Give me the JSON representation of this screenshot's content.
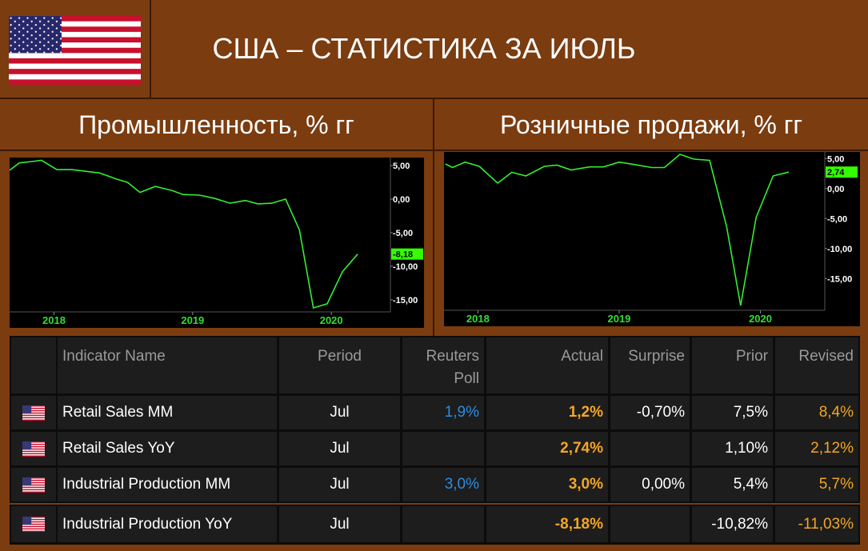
{
  "header": {
    "title": "США – СТАТИСТИКА ЗА ИЮЛЬ"
  },
  "chart_data": [
    {
      "type": "line",
      "title": "Промышленность, % гг",
      "x": [
        2017.68,
        2017.75,
        2017.84,
        2017.91,
        2018.02,
        2018.13,
        2018.21,
        2018.33,
        2018.45,
        2018.53,
        2018.62,
        2018.73,
        2018.85,
        2018.93,
        2019.05,
        2019.16,
        2019.27,
        2019.38,
        2019.47,
        2019.57,
        2019.67,
        2019.77,
        2019.87,
        2019.97,
        2020.08,
        2020.19
      ],
      "series": [
        {
          "color": "#33ee33",
          "values": [
            4.3,
            5.4,
            5.6,
            5.8,
            4.4,
            4.4,
            4.2,
            3.9,
            3.0,
            2.5,
            1.0,
            1.9,
            1.3,
            0.7,
            0.6,
            0.1,
            -0.6,
            -0.2,
            -0.7,
            -0.6,
            0.0,
            -4.6,
            -16.2,
            -15.6,
            -10.8,
            -8.18
          ],
          "value_labels": [
            null,
            null,
            null,
            null,
            null,
            null,
            null,
            null,
            null,
            null,
            null,
            null,
            null,
            null,
            null,
            null,
            null,
            null,
            null,
            null,
            null,
            null,
            null,
            null,
            null,
            "-8,18"
          ]
        }
      ],
      "xlim": [
        2017.68,
        2020.42
      ],
      "xticks": [
        2018,
        2019,
        2020
      ],
      "ylim": [
        -16.8,
        6.2
      ],
      "yticks": [
        {
          "value": 5,
          "label": "5,00"
        },
        {
          "value": 0,
          "label": "0,00"
        },
        {
          "value": -5,
          "label": "-5,00"
        },
        {
          "value": -10,
          "label": "-10,00"
        },
        {
          "value": -15,
          "label": "-15,00"
        }
      ]
    },
    {
      "type": "line",
      "title": "Розничные продажи, % гг",
      "x": [
        2017.77,
        2017.82,
        2017.91,
        2018.01,
        2018.14,
        2018.24,
        2018.34,
        2018.47,
        2018.56,
        2018.66,
        2018.79,
        2018.89,
        2019.0,
        2019.11,
        2019.23,
        2019.32,
        2019.43,
        2019.53,
        2019.64,
        2019.76,
        2019.86,
        2019.97,
        2020.09,
        2020.2
      ],
      "series": [
        {
          "color": "#33ee33",
          "values": [
            4.1,
            3.5,
            4.4,
            3.7,
            0.9,
            2.7,
            2.1,
            3.7,
            3.9,
            3.1,
            3.6,
            3.6,
            4.4,
            4.0,
            3.5,
            3.5,
            5.7,
            4.9,
            4.7,
            -6.3,
            -19.5,
            -4.8,
            2.1,
            2.74
          ],
          "value_labels": [
            null,
            null,
            null,
            null,
            null,
            null,
            null,
            null,
            null,
            null,
            null,
            null,
            null,
            null,
            null,
            null,
            null,
            null,
            null,
            null,
            null,
            null,
            null,
            "2,74"
          ]
        }
      ],
      "xlim": [
        2017.76,
        2020.45
      ],
      "xticks": [
        2018,
        2019,
        2020
      ],
      "ylim": [
        -20.3,
        6.1
      ],
      "yticks": [
        {
          "value": 5,
          "label": "5,00"
        },
        {
          "value": 0,
          "label": "0,00"
        },
        {
          "value": -5,
          "label": "-5,00"
        },
        {
          "value": -10,
          "label": "-10,00"
        },
        {
          "value": -15,
          "label": "-15,00"
        }
      ]
    }
  ],
  "table": {
    "columns": [
      "Indicator Name",
      "Period",
      "Reuters Poll",
      "Actual",
      "Surprise",
      "Prior",
      "Revised"
    ],
    "rows": [
      [
        "Retail Sales MM",
        "Jul",
        "1,9%",
        "1,2%",
        "-0,70%",
        "7,5%",
        "8,4%"
      ],
      [
        "Retail Sales YoY",
        "Jul",
        null,
        "2,74%",
        null,
        "1,10%",
        "2,12%"
      ],
      [
        "Industrial Production MM",
        "Jul",
        "3,0%",
        "3,0%",
        "0,00%",
        "5,4%",
        "5,7%"
      ],
      [
        "Industrial Production YoY",
        "Jul",
        null,
        "-8,18%",
        null,
        "-10,82%",
        "-11,03%"
      ]
    ]
  }
}
